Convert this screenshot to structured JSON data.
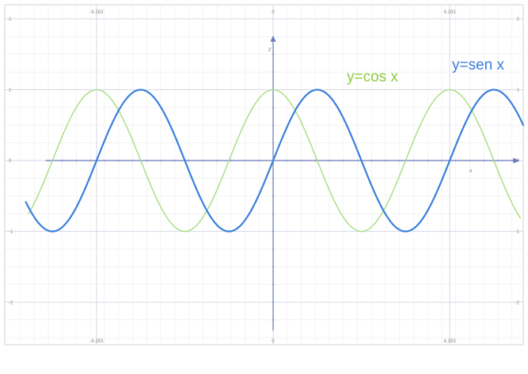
{
  "chart_data": {
    "type": "line",
    "title": "",
    "xlabel": "x",
    "ylabel": "y",
    "xlim": [
      -9.55,
      8.9
    ],
    "ylim": [
      -2.6,
      2.2
    ],
    "grid": true,
    "x_ticks": [
      {
        "value": -6.283,
        "label": "-6.283"
      },
      {
        "value": 0,
        "label": "0"
      },
      {
        "value": 6.283,
        "label": "6.283"
      }
    ],
    "y_ticks": [
      {
        "value": 2,
        "label": "2"
      },
      {
        "value": 1,
        "label": "1"
      },
      {
        "value": 0,
        "label": "0"
      },
      {
        "value": -1,
        "label": "-1"
      },
      {
        "value": -2,
        "label": "-2"
      }
    ],
    "series": [
      {
        "name": "y=cos x",
        "function": "cos",
        "x_range": [
          -8.7,
          8.8
        ],
        "color": "#a6dc82",
        "stroke_width": 1.4
      },
      {
        "name": "y=sen x",
        "function": "sin",
        "x_range": [
          -8.8,
          8.9
        ],
        "color": "#3a7fdc",
        "stroke_width": 2.2
      }
    ],
    "annotations": [
      {
        "text": "y=sen x",
        "color": "#3a7fdc"
      },
      {
        "text": "y=cos x",
        "color": "#8ccc3c"
      }
    ]
  }
}
